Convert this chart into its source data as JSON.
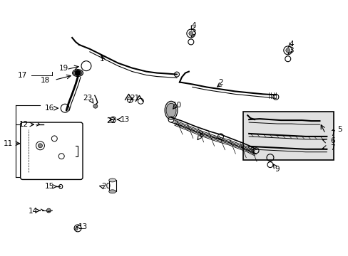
{
  "bg_color": "#ffffff",
  "line_color": "#000000",
  "part_color": "#333333",
  "box_bg": "#e8e8e8",
  "fig_width": 4.89,
  "fig_height": 3.6,
  "dpi": 100
}
